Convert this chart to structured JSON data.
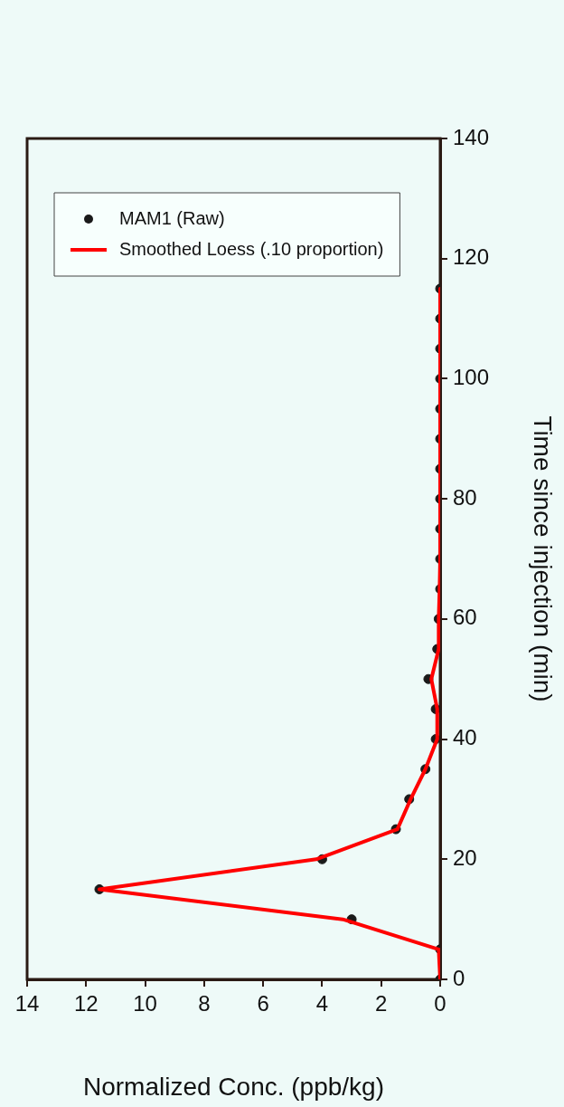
{
  "chart_data": {
    "type": "line",
    "xlabel": "Normalized Conc. (ppb/kg)",
    "ylabel": "Time since injection (min)",
    "xlim": [
      14,
      0
    ],
    "xticks": [
      14,
      12,
      10,
      8,
      6,
      4,
      2,
      0
    ],
    "ylim": [
      0,
      140
    ],
    "yticks": [
      0,
      20,
      40,
      60,
      80,
      100,
      120,
      140
    ],
    "grid": false,
    "legend": "top left",
    "series": [
      {
        "name": "MAM1 (Raw)",
        "type": "scatter",
        "marker": "circle",
        "color": "#1a1a1a",
        "x": [
          0,
          0,
          3.0,
          11.55,
          4.0,
          1.5,
          1.05,
          0.5,
          0.15,
          0.15,
          0.4,
          0.1,
          0.05,
          0,
          0,
          0,
          0,
          0,
          0,
          0,
          0,
          0,
          0,
          0
        ],
        "values": [
          0,
          5,
          10,
          15,
          20,
          25,
          30,
          35,
          40,
          45,
          50,
          55,
          60,
          65,
          70,
          75,
          80,
          85,
          90,
          95,
          100,
          105,
          110,
          115
        ]
      },
      {
        "name": "Smoothed Loess (.10 proportion)",
        "type": "line",
        "marker": "none",
        "line_style": "solid",
        "color": "#ff0000",
        "x": [
          0,
          0.05,
          3.3,
          11.55,
          4.2,
          1.45,
          1.0,
          0.5,
          0.1,
          0.1,
          0.3,
          0.05,
          0.05,
          0.02,
          0,
          0,
          0,
          0,
          0,
          0,
          0,
          0,
          0,
          0
        ],
        "values": [
          0,
          5,
          10,
          15,
          20,
          25,
          30,
          35,
          40,
          45,
          50,
          55,
          60,
          65,
          70,
          75,
          80,
          85,
          90,
          95,
          100,
          105,
          110,
          115
        ]
      }
    ]
  }
}
